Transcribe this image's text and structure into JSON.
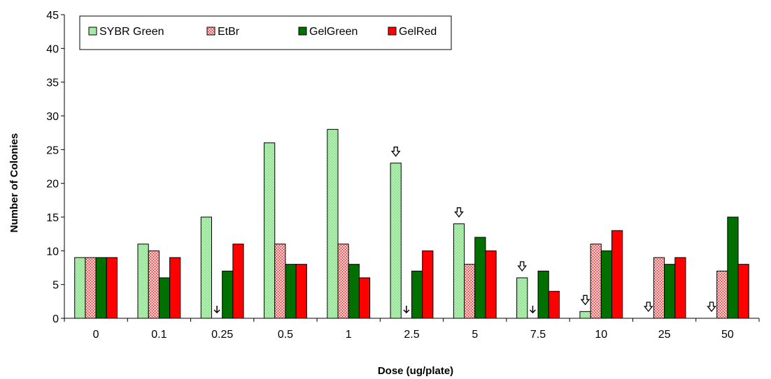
{
  "chart_data": {
    "type": "bar",
    "title": "",
    "xlabel": "Dose (ug/plate)",
    "ylabel": "Number of Colonies",
    "categories": [
      "0",
      "0.1",
      "0.25",
      "0.5",
      "1",
      "2.5",
      "5",
      "7.5",
      "10",
      "25",
      "50"
    ],
    "ylim": [
      0,
      45
    ],
    "ytick_step": 5,
    "ytick_labels": [
      "0",
      "5",
      "10",
      "15",
      "20",
      "25",
      "30",
      "35",
      "40",
      "45"
    ],
    "grid": false,
    "legend_position": "top-left",
    "series": [
      {
        "name": "SYBR Green",
        "color": "#8ef08e",
        "pattern": "dots-light",
        "values": [
          9,
          11,
          15,
          26,
          28,
          23,
          14,
          6,
          1,
          null,
          null
        ]
      },
      {
        "name": "EtBr",
        "color": "#ff4040",
        "pattern": "dots-red",
        "values": [
          9,
          10,
          null,
          11,
          11,
          null,
          8,
          null,
          11,
          9,
          7
        ]
      },
      {
        "name": "GelGreen",
        "color": "#007000",
        "pattern": "solid",
        "values": [
          9,
          6,
          7,
          8,
          8,
          7,
          12,
          7,
          10,
          8,
          15
        ]
      },
      {
        "name": "GelRed",
        "color": "#ff0000",
        "pattern": "solid",
        "values": [
          9,
          9,
          11,
          8,
          6,
          10,
          10,
          4,
          13,
          9,
          8
        ]
      }
    ],
    "annotations": [
      {
        "marker": "thin-arrow",
        "category": "0.25",
        "series": "EtBr",
        "y": 0
      },
      {
        "marker": "thin-arrow",
        "category": "2.5",
        "series": "EtBr",
        "y": 0
      },
      {
        "marker": "thin-arrow",
        "category": "7.5",
        "series": "EtBr",
        "y": 0
      },
      {
        "marker": "hollow-arrow",
        "category": "2.5",
        "series": "SYBR Green",
        "y": 23
      },
      {
        "marker": "hollow-arrow",
        "category": "5",
        "series": "SYBR Green",
        "y": 14
      },
      {
        "marker": "hollow-arrow",
        "category": "7.5",
        "series": "SYBR Green",
        "y": 6
      },
      {
        "marker": "hollow-arrow",
        "category": "10",
        "series": "SYBR Green",
        "y": 1
      },
      {
        "marker": "hollow-arrow",
        "category": "25",
        "series": "SYBR Green",
        "y": 0
      },
      {
        "marker": "hollow-arrow",
        "category": "50",
        "series": "SYBR Green",
        "y": 0
      }
    ]
  }
}
